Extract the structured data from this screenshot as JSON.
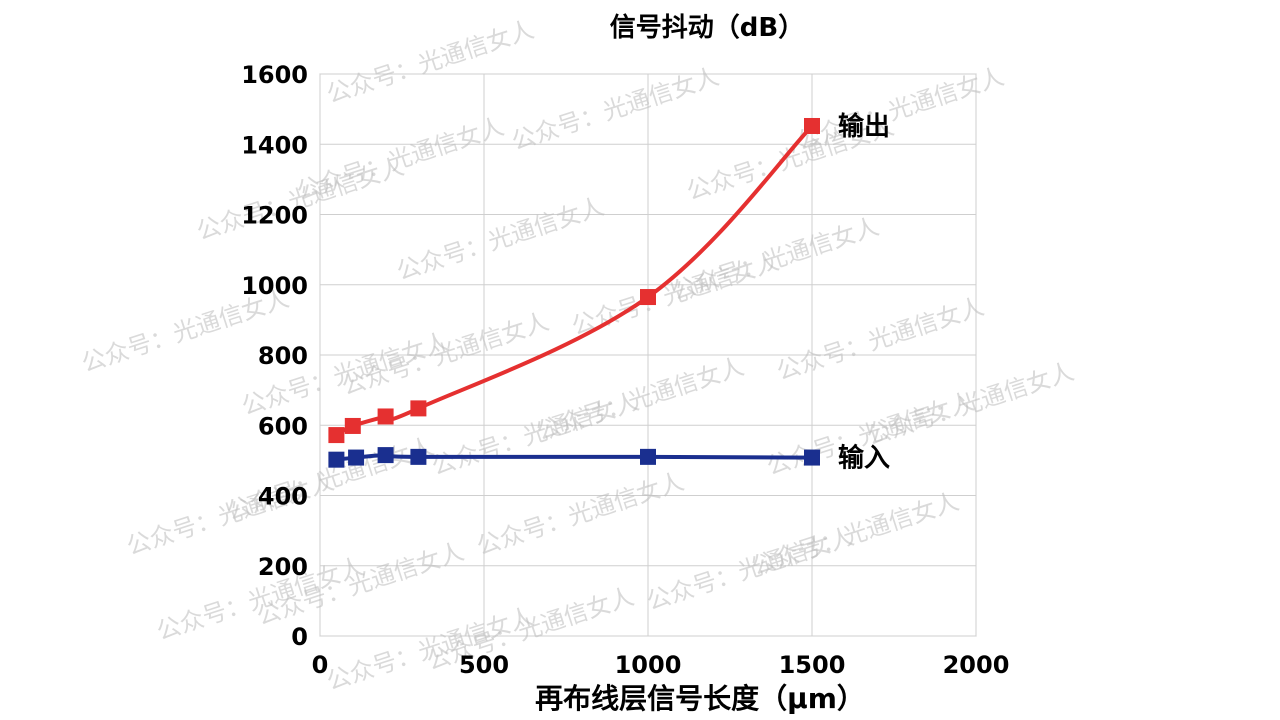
{
  "watermark": "公众号：光通信女人",
  "chart_data": {
    "type": "line",
    "title": "信号抖动（dB）",
    "xlabel": "再布线层信号长度（μm）",
    "ylabel": "",
    "xlim": [
      0,
      2000
    ],
    "ylim": [
      0,
      1600
    ],
    "xticks": [
      0,
      500,
      1000,
      1500,
      2000
    ],
    "yticks": [
      0,
      200,
      400,
      600,
      800,
      1000,
      1200,
      1400,
      1600
    ],
    "grid": true,
    "series": [
      {
        "name": "输出",
        "color": "#e53030",
        "x": [
          50,
          100,
          200,
          300,
          1000,
          1500
        ],
        "y": [
          572,
          598,
          625,
          648,
          965,
          1452
        ]
      },
      {
        "name": "输入",
        "color": "#1a2f8f",
        "x": [
          50,
          110,
          200,
          300,
          1000,
          1500
        ],
        "y": [
          502,
          508,
          515,
          510,
          510,
          508
        ]
      }
    ]
  }
}
